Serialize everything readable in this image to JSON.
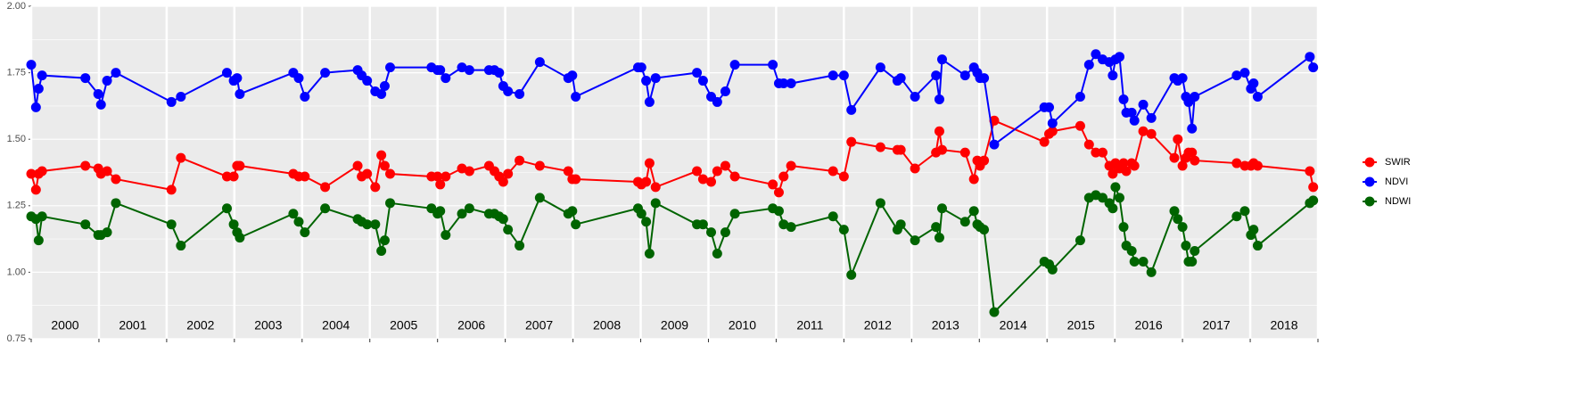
{
  "chart_data": {
    "type": "line",
    "x": [
      2000.0,
      2000.07,
      2000.11,
      2000.16,
      2000.8,
      2000.99,
      2001.03,
      2001.12,
      2001.25,
      2002.07,
      2002.21,
      2002.89,
      2002.99,
      2003.04,
      2003.08,
      2003.87,
      2003.95,
      2004.04,
      2004.34,
      2004.82,
      2004.88,
      2004.96,
      2005.08,
      2005.17,
      2005.22,
      2005.3,
      2005.91,
      2006.0,
      2006.04,
      2006.12,
      2006.36,
      2006.47,
      2006.76,
      2006.84,
      2006.91,
      2006.97,
      2007.04,
      2007.21,
      2007.51,
      2007.93,
      2007.99,
      2008.04,
      2008.96,
      2009.01,
      2009.08,
      2009.13,
      2009.22,
      2009.83,
      2009.92,
      2010.04,
      2010.13,
      2010.25,
      2010.39,
      2010.95,
      2011.04,
      2011.11,
      2011.22,
      2011.84,
      2012.0,
      2012.11,
      2012.54,
      2012.79,
      2012.84,
      2013.05,
      2013.36,
      2013.41,
      2013.45,
      2013.79,
      2013.92,
      2013.97,
      2014.01,
      2014.07,
      2014.22,
      2014.96,
      2015.03,
      2015.08,
      2015.49,
      2015.62,
      2015.72,
      2015.82,
      2015.92,
      2015.97,
      2016.01,
      2016.07,
      2016.13,
      2016.17,
      2016.25,
      2016.29,
      2016.42,
      2016.54,
      2016.88,
      2016.93,
      2017.0,
      2017.05,
      2017.09,
      2017.14,
      2017.18,
      2017.8,
      2017.92,
      2018.01,
      2018.05,
      2018.11,
      2018.88,
      2018.93
    ],
    "series": [
      {
        "name": "SWIR",
        "color": "#ff0000",
        "values": [
          1.37,
          1.31,
          1.37,
          1.38,
          1.4,
          1.39,
          1.37,
          1.38,
          1.35,
          1.31,
          1.43,
          1.36,
          1.36,
          1.4,
          1.4,
          1.37,
          1.36,
          1.36,
          1.32,
          1.4,
          1.36,
          1.37,
          1.32,
          1.44,
          1.4,
          1.37,
          1.36,
          1.36,
          1.33,
          1.36,
          1.39,
          1.38,
          1.4,
          1.38,
          1.36,
          1.34,
          1.37,
          1.42,
          1.4,
          1.38,
          1.35,
          1.35,
          1.34,
          1.33,
          1.34,
          1.41,
          1.32,
          1.38,
          1.35,
          1.34,
          1.38,
          1.4,
          1.36,
          1.33,
          1.3,
          1.36,
          1.4,
          1.38,
          1.36,
          1.49,
          1.47,
          1.46,
          1.46,
          1.39,
          1.45,
          1.53,
          1.46,
          1.45,
          1.35,
          1.42,
          1.4,
          1.42,
          1.57,
          1.49,
          1.52,
          1.53,
          1.55,
          1.48,
          1.45,
          1.45,
          1.4,
          1.37,
          1.41,
          1.39,
          1.41,
          1.38,
          1.41,
          1.4,
          1.53,
          1.52,
          1.43,
          1.5,
          1.4,
          1.43,
          1.45,
          1.45,
          1.42,
          1.41,
          1.4,
          1.4,
          1.41,
          1.4,
          1.38,
          1.32
        ]
      },
      {
        "name": "NDVI",
        "color": "#0000ff",
        "values": [
          1.78,
          1.62,
          1.69,
          1.74,
          1.73,
          1.67,
          1.63,
          1.72,
          1.75,
          1.64,
          1.66,
          1.75,
          1.72,
          1.73,
          1.67,
          1.75,
          1.73,
          1.66,
          1.75,
          1.76,
          1.74,
          1.72,
          1.68,
          1.67,
          1.7,
          1.77,
          1.77,
          1.76,
          1.76,
          1.73,
          1.77,
          1.76,
          1.76,
          1.76,
          1.75,
          1.7,
          1.68,
          1.67,
          1.79,
          1.73,
          1.74,
          1.66,
          1.77,
          1.77,
          1.72,
          1.64,
          1.73,
          1.75,
          1.72,
          1.66,
          1.64,
          1.68,
          1.78,
          1.78,
          1.71,
          1.71,
          1.71,
          1.74,
          1.74,
          1.61,
          1.77,
          1.72,
          1.73,
          1.66,
          1.74,
          1.65,
          1.8,
          1.74,
          1.77,
          1.75,
          1.73,
          1.73,
          1.48,
          1.62,
          1.62,
          1.56,
          1.66,
          1.78,
          1.82,
          1.8,
          1.79,
          1.74,
          1.8,
          1.81,
          1.65,
          1.6,
          1.6,
          1.57,
          1.63,
          1.58,
          1.73,
          1.72,
          1.73,
          1.66,
          1.64,
          1.54,
          1.66,
          1.74,
          1.75,
          1.69,
          1.71,
          1.66,
          1.81,
          1.77
        ]
      },
      {
        "name": "NDWI",
        "color": "#006400",
        "values": [
          1.21,
          1.2,
          1.12,
          1.21,
          1.18,
          1.14,
          1.14,
          1.15,
          1.26,
          1.18,
          1.1,
          1.24,
          1.18,
          1.15,
          1.13,
          1.22,
          1.19,
          1.15,
          1.24,
          1.2,
          1.19,
          1.18,
          1.18,
          1.08,
          1.12,
          1.26,
          1.24,
          1.22,
          1.23,
          1.14,
          1.22,
          1.24,
          1.22,
          1.22,
          1.21,
          1.2,
          1.16,
          1.1,
          1.28,
          1.22,
          1.23,
          1.18,
          1.24,
          1.22,
          1.19,
          1.07,
          1.26,
          1.18,
          1.18,
          1.15,
          1.07,
          1.15,
          1.22,
          1.24,
          1.23,
          1.18,
          1.17,
          1.21,
          1.16,
          0.99,
          1.26,
          1.16,
          1.18,
          1.12,
          1.17,
          1.13,
          1.24,
          1.19,
          1.23,
          1.18,
          1.17,
          1.16,
          0.85,
          1.04,
          1.03,
          1.01,
          1.12,
          1.28,
          1.29,
          1.28,
          1.26,
          1.24,
          1.32,
          1.28,
          1.17,
          1.1,
          1.08,
          1.04,
          1.04,
          1.0,
          1.23,
          1.2,
          1.17,
          1.1,
          1.04,
          1.04,
          1.08,
          1.21,
          1.23,
          1.14,
          1.16,
          1.1,
          1.26,
          1.27
        ]
      }
    ],
    "categories": [
      "2000",
      "2001",
      "2002",
      "2003",
      "2004",
      "2005",
      "2006",
      "2007",
      "2008",
      "2009",
      "2010",
      "2011",
      "2012",
      "2013",
      "2014",
      "2015",
      "2016",
      "2017",
      "2018"
    ],
    "xlim": [
      2000,
      2019
    ],
    "xticks": [
      2000,
      2001,
      2002,
      2003,
      2004,
      2005,
      2006,
      2007,
      2008,
      2009,
      2010,
      2011,
      2012,
      2013,
      2014,
      2015,
      2016,
      2017,
      2018,
      2019
    ],
    "ylim": [
      0.75,
      2.0
    ],
    "yticks": [
      {
        "value": 0.75,
        "label": "0.75"
      },
      {
        "value": 1.0,
        "label": "1.00"
      },
      {
        "value": 1.25,
        "label": "1.25"
      },
      {
        "value": 1.5,
        "label": "1.50"
      },
      {
        "value": 1.75,
        "label": "1.75"
      },
      {
        "value": 2.0,
        "label": "2.00"
      }
    ],
    "grid": true,
    "legend": "right"
  }
}
